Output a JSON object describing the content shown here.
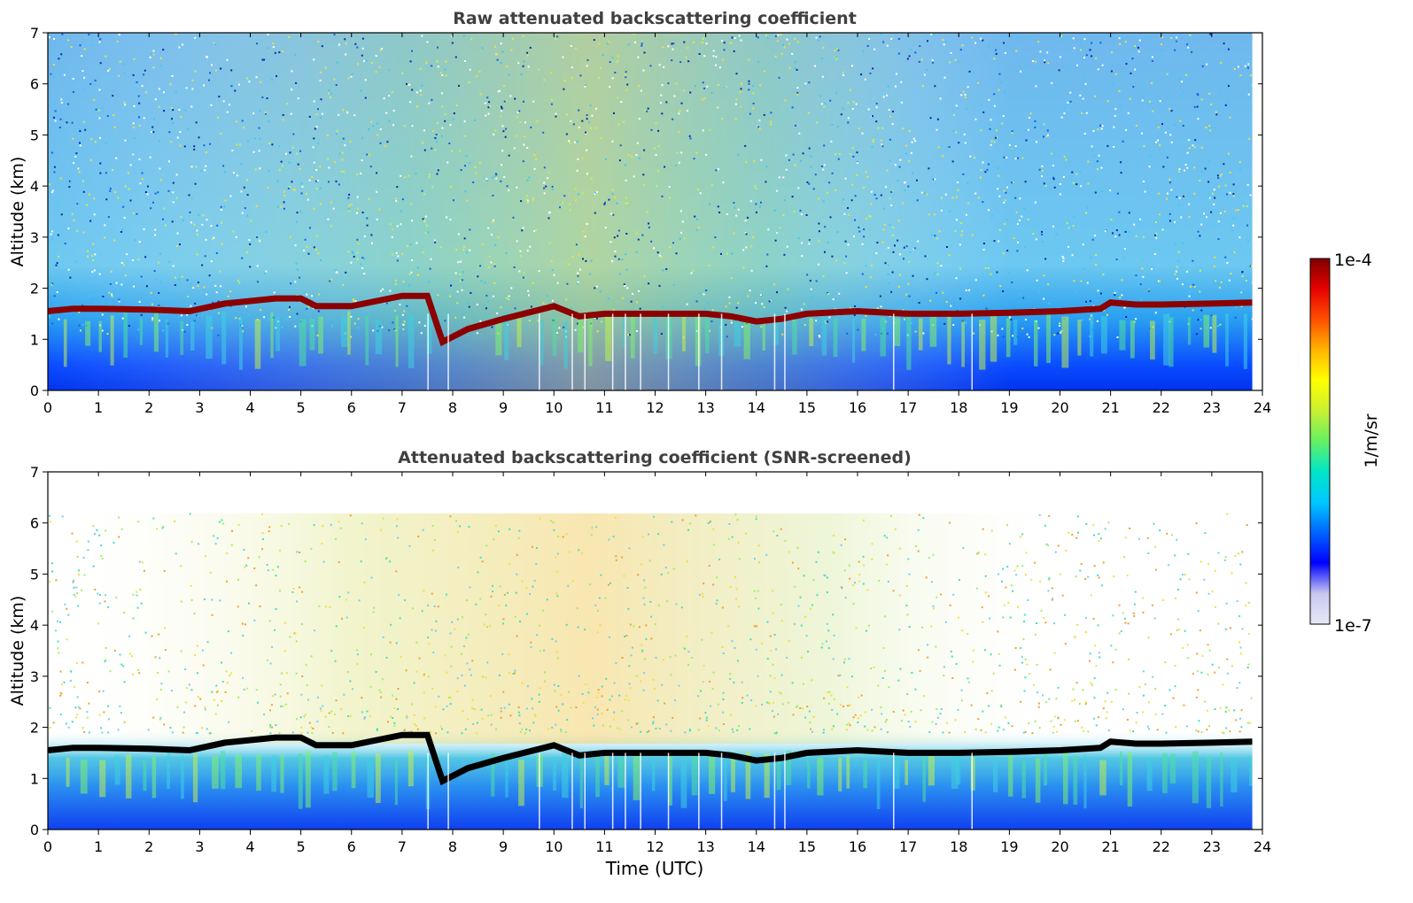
{
  "chart_data": [
    {
      "type": "heatmap",
      "title": "Raw attenuated backscattering coefficient",
      "xlabel": "",
      "ylabel": "Altitude (km)",
      "xlim": [
        0,
        24
      ],
      "ylim": [
        0,
        7
      ],
      "xticks": [
        "0",
        "1",
        "2",
        "3",
        "4",
        "5",
        "6",
        "7",
        "8",
        "9",
        "10",
        "11",
        "12",
        "13",
        "14",
        "15",
        "16",
        "17",
        "18",
        "19",
        "20",
        "21",
        "22",
        "23",
        "24"
      ],
      "yticks": [
        "0",
        "1",
        "2",
        "3",
        "4",
        "5",
        "6",
        "7"
      ],
      "data_end_time": 23.8,
      "layer_top_km": {
        "time": [
          0,
          0.5,
          1,
          2,
          2.8,
          3.5,
          4.5,
          5.0,
          5.3,
          6.0,
          6.5,
          7.0,
          7.5,
          7.8,
          8.3,
          9.0,
          10.0,
          10.5,
          11.0,
          12.0,
          13.0,
          13.5,
          14.0,
          14.5,
          15.0,
          16.0,
          17.0,
          18.0,
          19.0,
          20.0,
          20.8,
          21.0,
          21.5,
          22.0,
          23.0,
          23.8
        ],
        "altitude": [
          1.55,
          1.6,
          1.6,
          1.58,
          1.55,
          1.7,
          1.8,
          1.8,
          1.65,
          1.65,
          1.75,
          1.85,
          1.85,
          0.95,
          1.2,
          1.4,
          1.65,
          1.45,
          1.5,
          1.5,
          1.5,
          1.45,
          1.35,
          1.4,
          1.5,
          1.55,
          1.5,
          1.5,
          1.52,
          1.55,
          1.6,
          1.72,
          1.68,
          1.68,
          1.7,
          1.72
        ]
      }
    },
    {
      "type": "heatmap",
      "title": "Attenuated backscattering coefficient (SNR-screened)",
      "xlabel": "Time (UTC)",
      "ylabel": "Altitude (km)",
      "xlim": [
        0,
        24
      ],
      "ylim": [
        0,
        7
      ],
      "xticks": [
        "0",
        "1",
        "2",
        "3",
        "4",
        "5",
        "6",
        "7",
        "8",
        "9",
        "10",
        "11",
        "12",
        "13",
        "14",
        "15",
        "16",
        "17",
        "18",
        "19",
        "20",
        "21",
        "22",
        "23",
        "24"
      ],
      "yticks": [
        "0",
        "1",
        "2",
        "3",
        "4",
        "5",
        "6",
        "7"
      ],
      "data_end_time": 23.8
    }
  ],
  "colorbar": {
    "label": "1/m/sr",
    "max_label": "1e-4",
    "min_label": "1e-7",
    "colormap": [
      "#e8e8f8",
      "#c8c8f0",
      "#0000ff",
      "#0064ff",
      "#00c8ff",
      "#00e6c8",
      "#64f064",
      "#c8f032",
      "#ffff00",
      "#ffb400",
      "#ff5000",
      "#e60000",
      "#800000"
    ]
  },
  "colors": {
    "axis_title": "#404040",
    "layer_raw": "#8b0000",
    "layer_screened": "#000000",
    "background": "#ffffff"
  }
}
